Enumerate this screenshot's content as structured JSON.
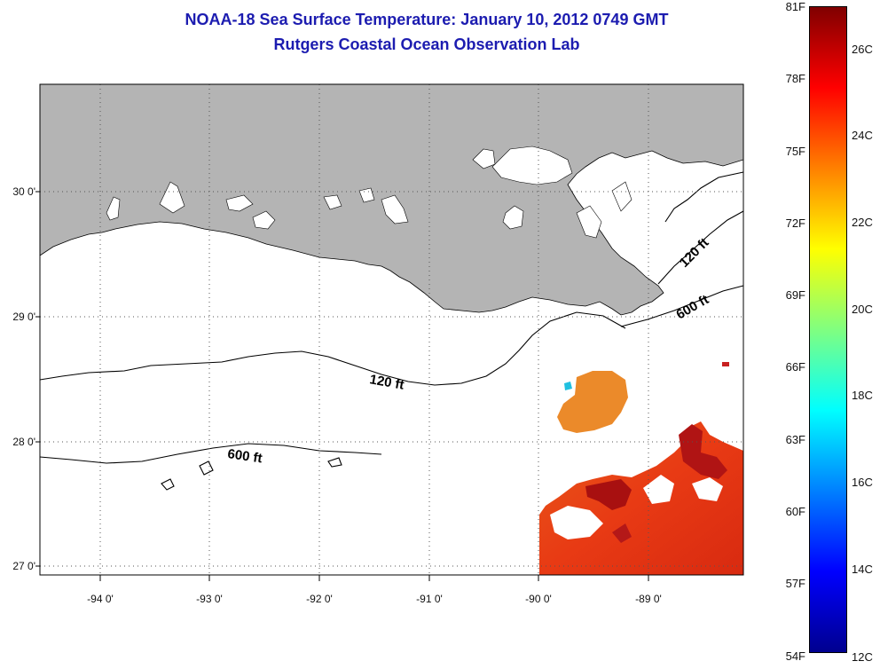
{
  "title": "NOAA-18 Sea Surface Temperature:  January 10, 2012 0749 GMT",
  "subtitle": "Rutgers Coastal Ocean Observation Lab",
  "lat_labels": [
    "30 0'",
    "29 0'",
    "28 0'",
    "27 0'"
  ],
  "lon_labels": [
    "-94 0'",
    "-93 0'",
    "-92 0'",
    "-91 0'",
    "-90 0'",
    "-89 0'"
  ],
  "contour_labels": [
    "120 ft",
    "600 ft",
    "120 ft",
    "600 ft"
  ],
  "colorbar": {
    "fahrenheit": [
      "81F",
      "78F",
      "75F",
      "72F",
      "69F",
      "66F",
      "63F",
      "60F",
      "57F",
      "54F"
    ],
    "celsius": [
      "26C",
      "24C",
      "22C",
      "20C",
      "18C",
      "16C",
      "14C",
      "12C"
    ],
    "colors": [
      "#00008f",
      "#0000ff",
      "#0080ff",
      "#00ffff",
      "#80ff80",
      "#ffff00",
      "#ff8000",
      "#ff0000",
      "#800000"
    ]
  },
  "colors": {
    "title": "#1c1cb0",
    "land": "#b4b4b4",
    "sst_warm": "#e8401a",
    "sst_hot": "#b01010"
  }
}
